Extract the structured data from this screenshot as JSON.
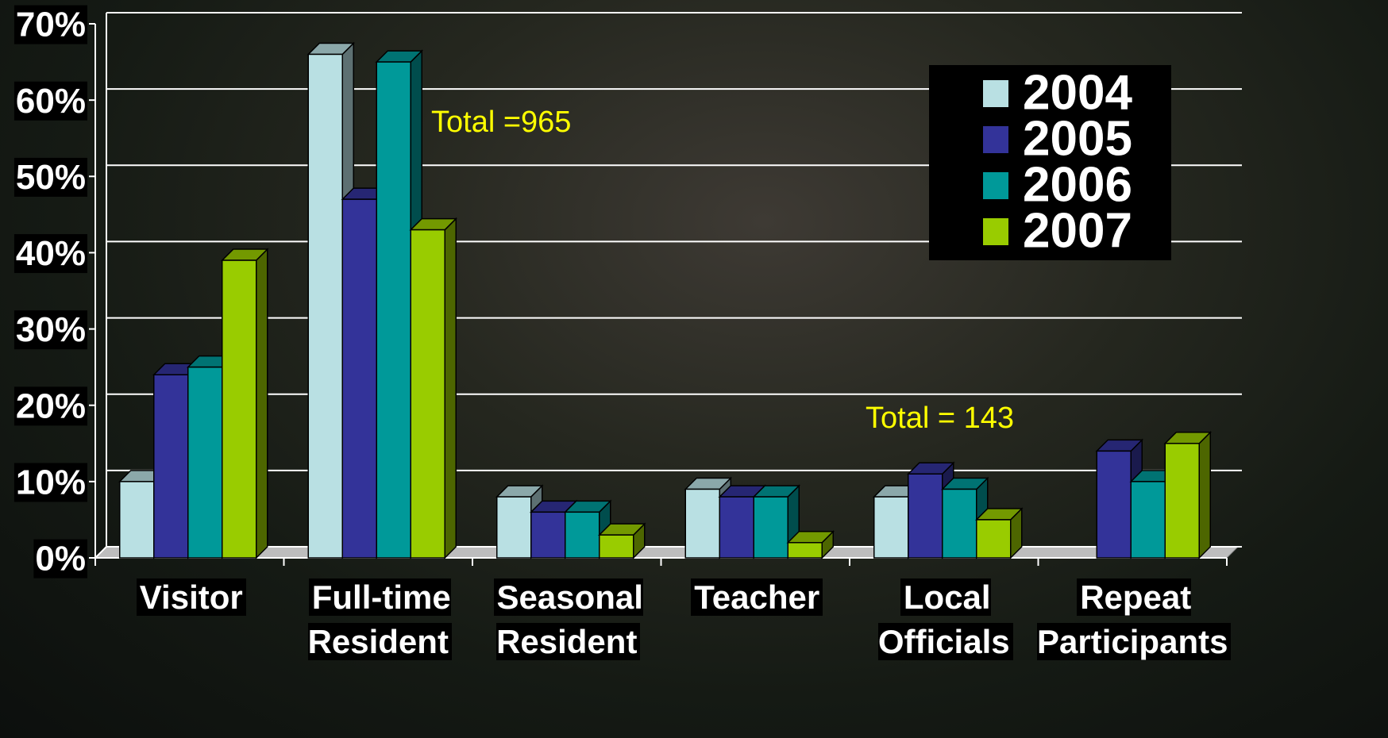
{
  "chart_data": {
    "type": "bar",
    "categories": [
      "Visitor",
      "Full-time Resident",
      "Seasonal Resident",
      "Teacher",
      "Local Officials",
      "Repeat Participants"
    ],
    "series": [
      {
        "name": "2004",
        "color": "#b9e0e3",
        "values": [
          10,
          66,
          8,
          9,
          8,
          null
        ]
      },
      {
        "name": "2005",
        "color": "#333399",
        "values": [
          24,
          47,
          6,
          8,
          11,
          14
        ]
      },
      {
        "name": "2006",
        "color": "#009999",
        "values": [
          25,
          65,
          6,
          8,
          9,
          10
        ]
      },
      {
        "name": "2007",
        "color": "#99cc00",
        "values": [
          39,
          43,
          3,
          2,
          5,
          15
        ]
      }
    ],
    "ylim": [
      0,
      70
    ],
    "yticks": [
      {
        "value": 0,
        "label": "0%"
      },
      {
        "value": 10,
        "label": "10%"
      },
      {
        "value": 20,
        "label": "20%"
      },
      {
        "value": 30,
        "label": "30%"
      },
      {
        "value": 40,
        "label": "40%"
      },
      {
        "value": 50,
        "label": "50%"
      },
      {
        "value": 60,
        "label": "60%"
      },
      {
        "value": 70,
        "label": "70%"
      }
    ],
    "grid": true,
    "legend": "top-right",
    "annotations": [
      "Total =965",
      "Total = 143"
    ]
  }
}
